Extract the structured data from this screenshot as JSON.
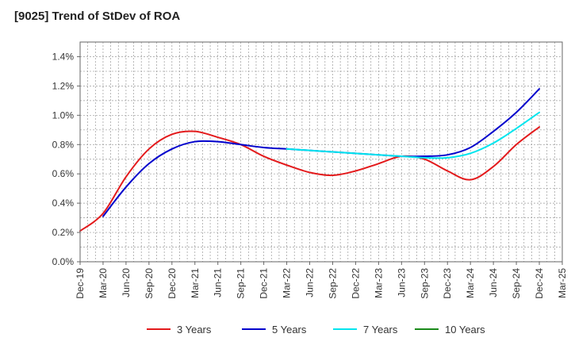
{
  "chart_data": {
    "type": "line",
    "title": "[9025]  Trend of StDev of ROA",
    "xlabel": "",
    "ylabel": "",
    "grid": true,
    "legend_position": "bottom",
    "x_tick_labels": [
      "Dec-19",
      "Mar-20",
      "Jun-20",
      "Sep-20",
      "Dec-20",
      "Mar-21",
      "Jun-21",
      "Sep-21",
      "Dec-21",
      "Mar-22",
      "Jun-22",
      "Sep-22",
      "Dec-22",
      "Mar-23",
      "Jun-23",
      "Sep-23",
      "Dec-23",
      "Mar-24",
      "Jun-24",
      "Sep-24",
      "Dec-24",
      "Mar-25"
    ],
    "y_tick_labels": [
      "0.0%",
      "0.2%",
      "0.4%",
      "0.6%",
      "0.8%",
      "1.0%",
      "1.2%",
      "1.4%"
    ],
    "ylim": [
      0,
      1.5
    ],
    "y_unit": "%",
    "series": [
      {
        "name": "3 Years",
        "color": "#e31a1c",
        "x": [
          "Dec-19",
          "Mar-20",
          "Jun-20",
          "Sep-20",
          "Dec-20",
          "Mar-21",
          "Jun-21",
          "Sep-21",
          "Dec-21",
          "Mar-22",
          "Jun-22",
          "Sep-22",
          "Dec-22",
          "Mar-23",
          "Jun-23",
          "Sep-23",
          "Dec-23",
          "Mar-24",
          "Jun-24",
          "Sep-24",
          "Dec-24"
        ],
        "values": [
          0.21,
          0.33,
          0.58,
          0.77,
          0.87,
          0.89,
          0.85,
          0.8,
          0.72,
          0.66,
          0.61,
          0.59,
          0.62,
          0.67,
          0.72,
          0.7,
          0.62,
          0.56,
          0.65,
          0.8,
          0.92
        ]
      },
      {
        "name": "5 Years",
        "color": "#0000cc",
        "x": [
          "Mar-20",
          "Jun-20",
          "Sep-20",
          "Dec-20",
          "Mar-21",
          "Jun-21",
          "Sep-21",
          "Dec-21",
          "Mar-22",
          "Jun-22",
          "Sep-22",
          "Dec-22",
          "Mar-23",
          "Jun-23",
          "Sep-23",
          "Dec-23",
          "Mar-24",
          "Jun-24",
          "Sep-24",
          "Dec-24"
        ],
        "values": [
          0.31,
          0.51,
          0.67,
          0.77,
          0.82,
          0.82,
          0.8,
          0.78,
          0.77,
          0.76,
          0.75,
          0.74,
          0.73,
          0.72,
          0.72,
          0.73,
          0.78,
          0.89,
          1.02,
          1.18
        ]
      },
      {
        "name": "7 Years",
        "color": "#00e5ee",
        "x": [
          "Mar-22",
          "Jun-22",
          "Sep-22",
          "Dec-22",
          "Mar-23",
          "Jun-23",
          "Sep-23",
          "Dec-23",
          "Mar-24",
          "Jun-24",
          "Sep-24",
          "Dec-24"
        ],
        "values": [
          0.77,
          0.76,
          0.75,
          0.74,
          0.73,
          0.72,
          0.71,
          0.71,
          0.74,
          0.81,
          0.91,
          1.02
        ]
      },
      {
        "name": "10 Years",
        "color": "#1a8a1a",
        "x": [],
        "values": []
      }
    ]
  }
}
